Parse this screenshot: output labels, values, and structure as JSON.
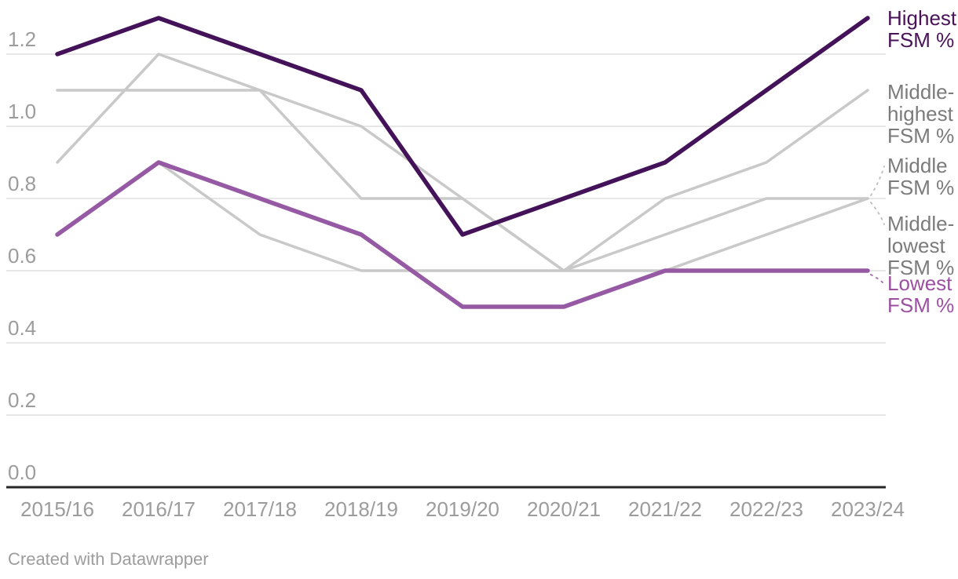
{
  "chart_data": {
    "type": "line",
    "title": "",
    "xlabel": "",
    "ylabel": "",
    "x_categories": [
      "2015/16",
      "2016/17",
      "2017/18",
      "2018/19",
      "2019/20",
      "2020/21",
      "2021/22",
      "2022/23",
      "2023/24"
    ],
    "y_ticks": [
      "0.0",
      "0.2",
      "0.4",
      "0.6",
      "0.8",
      "1.0",
      "1.2"
    ],
    "ylim": [
      0,
      1.3
    ],
    "grid": true,
    "legend_position": "right",
    "series": [
      {
        "id": "middle-highest",
        "name": "Middle-highest FSM %",
        "label_lines": [
          "Middle-",
          "highest",
          "FSM %"
        ],
        "label_baselines": [
          126,
          154,
          182
        ],
        "color": "#c9c9c9",
        "label_color": "#7b7b7b",
        "width": 3.5,
        "leader": false,
        "values": [
          1.1,
          1.1,
          1.1,
          1.0,
          0.8,
          0.6,
          0.8,
          0.9,
          1.1
        ]
      },
      {
        "id": "middle",
        "name": "Middle FSM %",
        "label_lines": [
          "Middle",
          "FSM %"
        ],
        "label_baselines": [
          220,
          248
        ],
        "color": "#c9c9c9",
        "label_color": "#7b7b7b",
        "leader_color": "#c2c2c2",
        "width": 3.5,
        "leader": true,
        "leader_offset": -4,
        "values": [
          0.9,
          1.2,
          1.1,
          0.8,
          0.8,
          0.6,
          0.7,
          0.8,
          0.8
        ]
      },
      {
        "id": "middle-lowest",
        "name": "Middle-lowest FSM %",
        "label_lines": [
          "Middle-",
          "lowest",
          "FSM %"
        ],
        "label_baselines": [
          294,
          322,
          350
        ],
        "color": "#c9c9c9",
        "label_color": "#7b7b7b",
        "leader_color": "#c2c2c2",
        "width": 3.5,
        "leader": true,
        "leader_offset": 5,
        "values": [
          0.7,
          0.9,
          0.7,
          0.6,
          0.6,
          0.6,
          0.6,
          0.7,
          0.8
        ]
      },
      {
        "id": "lowest",
        "name": "Lowest FSM %",
        "label_lines": [
          "Lowest",
          "FSM %"
        ],
        "label_baselines": [
          370,
          398
        ],
        "color": "#9659a3",
        "label_color": "#9d50a2",
        "leader_color": "#a876b0",
        "width": 5.5,
        "leader": true,
        "leader_offset": 5,
        "values": [
          0.7,
          0.9,
          0.8,
          0.7,
          0.5,
          0.5,
          0.6,
          0.6,
          0.6
        ]
      },
      {
        "id": "highest",
        "name": "Highest FSM %",
        "label_lines": [
          "Highest",
          "FSM %"
        ],
        "label_baselines": [
          32,
          60
        ],
        "color": "#431259",
        "label_color": "#4a1259",
        "width": 5.5,
        "leader": false,
        "values": [
          1.2,
          1.3,
          1.2,
          1.1,
          0.7,
          0.8,
          0.9,
          1.1,
          1.3
        ]
      }
    ]
  },
  "footer": {
    "credit": "Created with Datawrapper"
  }
}
